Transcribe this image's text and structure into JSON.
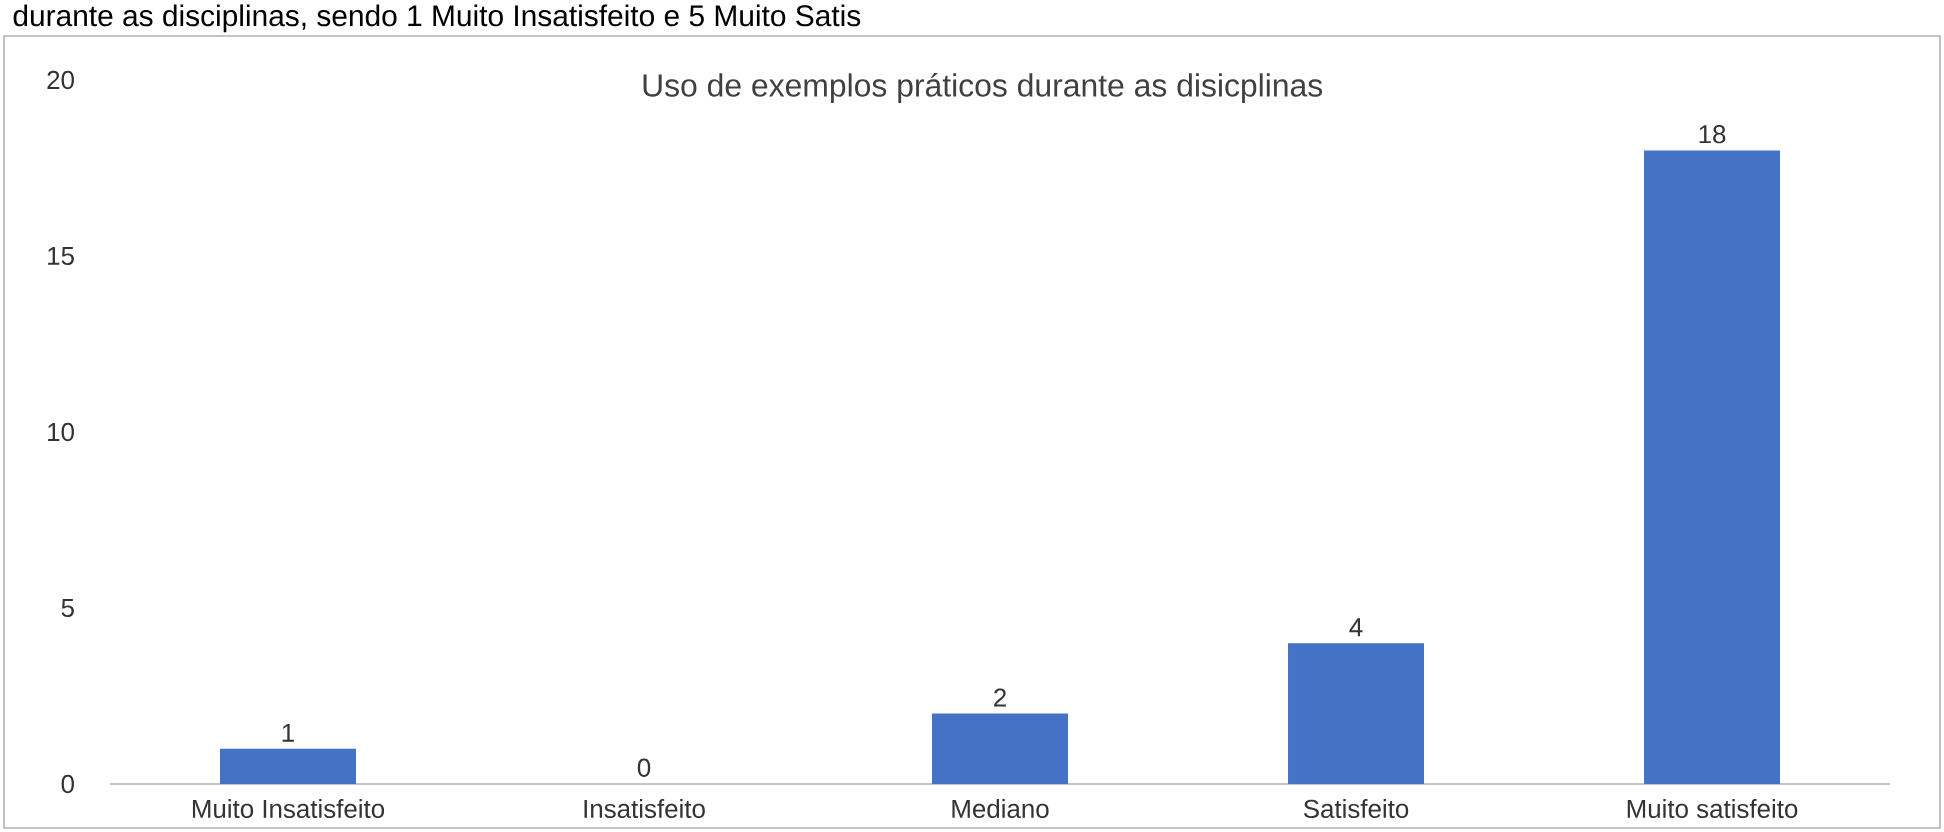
{
  "chart_data": {
    "type": "bar",
    "title": "Uso de exemplos práticos durante as disicplinas",
    "annotations": [
      "durante as disciplinas, sendo 1 Muito Insatisfeito e 5 Muito Satis"
    ],
    "categories": [
      "Muito Insatisfeito",
      "Insatisfeito",
      "Mediano",
      "Satisfeito",
      "Muito satisfeito"
    ],
    "values": [
      1,
      0,
      2,
      4,
      18
    ],
    "color": "#4472c4",
    "ylim": [
      0,
      20
    ],
    "yticks": [
      0,
      5,
      10,
      15,
      20
    ],
    "data_labels": true
  }
}
